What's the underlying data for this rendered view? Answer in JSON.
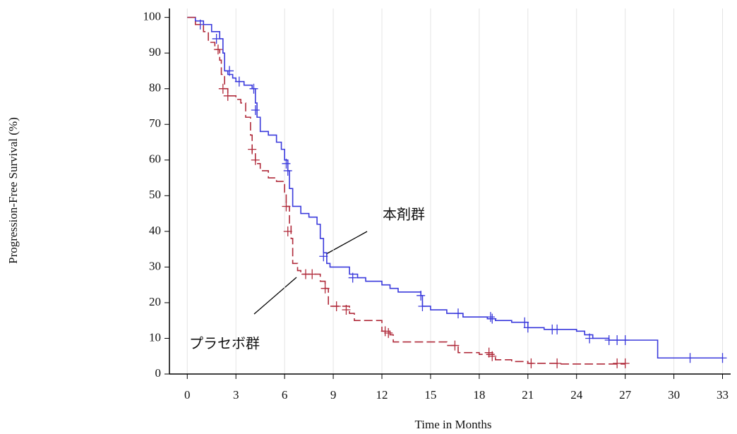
{
  "chart_data": {
    "type": "km",
    "x_label": "Time in Months",
    "y_label": "Progression-Free Survival (%)",
    "xlim": [
      -1.1,
      33.5
    ],
    "ylim": [
      0,
      102.5
    ],
    "xticks": [
      0,
      3,
      6,
      9,
      12,
      15,
      18,
      21,
      24,
      27,
      30,
      33
    ],
    "yticks": [
      0,
      10,
      20,
      30,
      40,
      50,
      60,
      70,
      80,
      90,
      100
    ],
    "grid": true,
    "series": [
      {
        "name": "本剤群",
        "color": "#3a3adc",
        "dash": false,
        "x": [
          0,
          0.5,
          1,
          1.5,
          2,
          2.2,
          2.3,
          2.5,
          2.8,
          3,
          3.5,
          4,
          4.2,
          4.3,
          4.5,
          5,
          5.5,
          5.8,
          6,
          6.2,
          6.3,
          6.5,
          7,
          7.5,
          8,
          8.2,
          8.4,
          8.6,
          8.8,
          10,
          10.5,
          11,
          12,
          12.5,
          13,
          14.4,
          14.5,
          15,
          16,
          17,
          18.5,
          19,
          20,
          21,
          22,
          24,
          24.5,
          25,
          26,
          29,
          33
        ],
        "values": [
          100,
          99,
          98,
          96,
          94,
          90,
          85,
          84,
          83,
          82,
          81,
          80,
          76,
          72,
          68,
          67,
          65,
          63,
          60,
          57,
          52,
          47,
          45,
          44,
          42,
          38,
          34,
          31,
          30,
          28,
          27,
          26,
          25,
          24,
          23,
          22,
          19,
          18,
          17,
          16,
          15.5,
          15,
          14.5,
          13,
          12.5,
          12,
          11,
          10,
          9.5,
          4.5,
          4.5
        ],
        "censor_x": [
          0.8,
          1.8,
          2.6,
          3.2,
          4.1,
          4.2,
          6.1,
          6.2,
          8.4,
          10.2,
          14.4,
          14.5,
          16.7,
          18.7,
          18.8,
          20.8,
          21,
          22.5,
          22.8,
          24.8,
          26,
          26.5,
          27,
          31,
          33
        ],
        "censor_y": [
          98,
          94,
          85,
          82,
          80,
          74,
          59,
          57,
          33,
          27,
          22,
          19,
          17,
          16,
          15.5,
          14.5,
          13,
          12.5,
          12.5,
          10,
          9.5,
          9.5,
          9.5,
          4.5,
          4.5
        ]
      },
      {
        "name": "プラセボ群",
        "color": "#b02a3a",
        "dash": true,
        "x": [
          0,
          0.5,
          1,
          1.3,
          1.7,
          2,
          2.1,
          2.3,
          2.5,
          3,
          3.3,
          3.6,
          3.9,
          4,
          4.2,
          4.5,
          5,
          5.5,
          6,
          6.1,
          6.3,
          6.4,
          6.5,
          6.8,
          7,
          8.2,
          8.5,
          8.7,
          10,
          10.3,
          12,
          12.5,
          12.7,
          16,
          16.7,
          18,
          19,
          20,
          21,
          23,
          27
        ],
        "values": [
          100,
          98,
          96,
          93,
          91,
          88,
          84,
          80,
          78,
          77,
          76,
          72,
          67,
          62,
          59,
          57,
          55,
          54,
          51,
          47,
          42,
          38,
          31,
          29,
          28,
          26,
          24,
          19,
          17,
          15,
          12,
          11,
          9,
          8,
          6,
          5.5,
          4,
          3.5,
          3,
          2.8,
          2.8
        ],
        "censor_x": [
          1.9,
          2.2,
          2.5,
          4,
          4.2,
          6.1,
          6.2,
          7.3,
          7.7,
          8.5,
          9.2,
          9.8,
          12.2,
          12.4,
          16.5,
          18.6,
          18.8,
          21.2,
          22.8,
          26.5,
          27
        ],
        "censor_y": [
          91,
          80,
          78,
          63,
          60,
          47,
          40,
          28,
          28,
          24,
          19,
          18,
          12,
          11.5,
          8,
          6,
          5,
          3,
          3,
          3,
          3
        ]
      }
    ]
  }
}
